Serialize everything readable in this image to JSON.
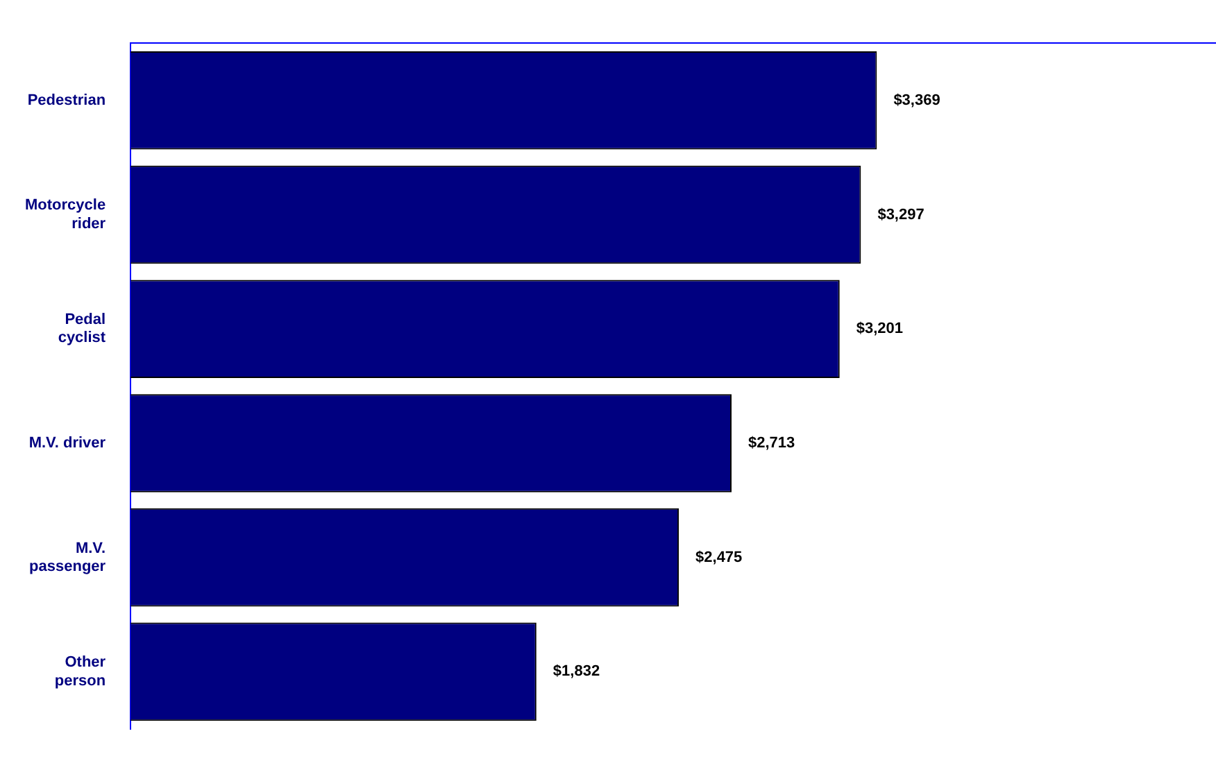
{
  "chart_data": {
    "type": "bar",
    "orientation": "horizontal",
    "categories": [
      "Pedestrian",
      "Motorcycle rider",
      "Pedal cyclist",
      "M.V. driver",
      "M.V. passenger",
      "Other person"
    ],
    "values": [
      3369,
      3297,
      3201,
      2713,
      2475,
      1832
    ],
    "value_labels": [
      "$3,369",
      "$3,297",
      "$3,201",
      "$2,713",
      "$2,475",
      "$1,832"
    ],
    "color": "#000080",
    "xlim": [
      0,
      4900
    ],
    "tick_labels": "y",
    "grid": false,
    "legend": false
  }
}
